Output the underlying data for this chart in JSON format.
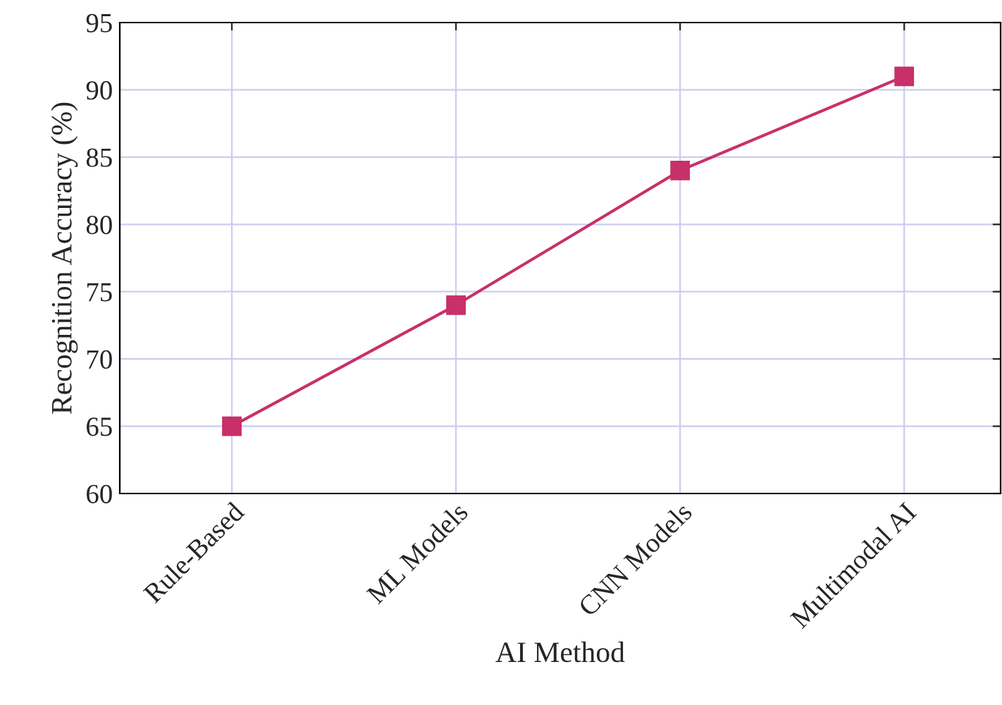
{
  "chart_data": {
    "type": "line",
    "xlabel": "AI Method",
    "ylabel": "Recognition Accuracy (%)",
    "categories": [
      "Rule-Based",
      "ML Models",
      "CNN Models",
      "Multimodal AI"
    ],
    "series": [
      {
        "color": "#c8306a",
        "values": [
          65,
          74,
          84,
          91
        ]
      }
    ],
    "ylim": [
      60,
      95
    ],
    "yticks": [
      60,
      65,
      70,
      75,
      80,
      85,
      90,
      95
    ],
    "grid": true,
    "marker": "square",
    "line_style": "solid"
  }
}
